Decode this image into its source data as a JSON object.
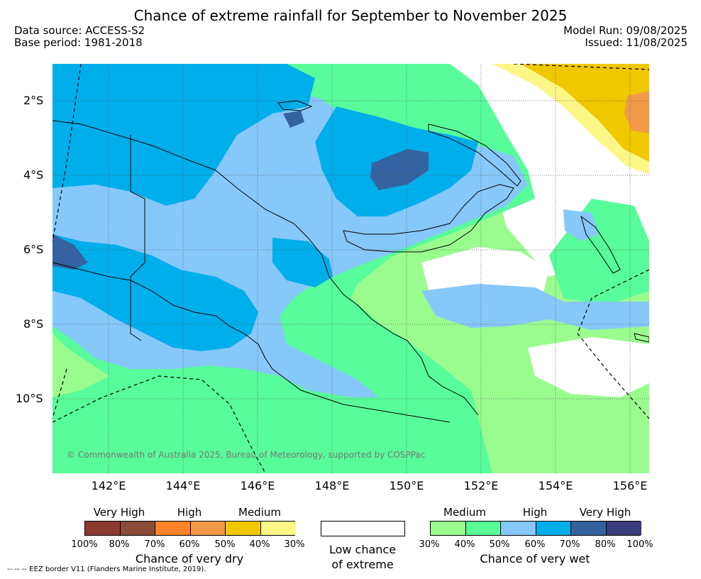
{
  "title": "Chance of extreme rainfall for September to November 2025",
  "header": {
    "data_source": "Data source: ACCESS-S2",
    "base_period": "Base period: 1981-2018",
    "model_run": "Model Run: 09/08/2025",
    "issued": "Issued: 11/08/2025"
  },
  "map": {
    "lat_labels": [
      "2°S",
      "4°S",
      "6°S",
      "8°S",
      "10°S"
    ],
    "lon_labels": [
      "142°E",
      "144°E",
      "146°E",
      "148°E",
      "150°E",
      "152°E",
      "154°E",
      "156°E"
    ],
    "lon_range": [
      140.5,
      156.5
    ],
    "lat_range": [
      -12.0,
      -1.0
    ],
    "copyright": "© Commonwealth of Australia 2025, Bureau of Meteorology, supported by COSPPac",
    "colors": {
      "wet_30": "#9afc8f",
      "wet_40": "#58fc9a",
      "wet_50": "#87c8fa",
      "wet_60": "#00aeea",
      "wet_70": "#3562a0",
      "dry_40": "#fcf787",
      "dry_50": "#f0c800",
      "dry_60": "#f29a4a"
    }
  },
  "legend_dry": {
    "categories": [
      "Very High",
      "High",
      "Medium"
    ],
    "percent_labels": [
      "100%",
      "80%",
      "70%",
      "60%",
      "50%",
      "40%",
      "30%"
    ],
    "colors": [
      "#8b3a30",
      "#8a4c38",
      "#fe8427",
      "#f09a48",
      "#f1c700",
      "#fdf885"
    ],
    "title": "Chance of very dry"
  },
  "legend_low": {
    "line1": "Low chance",
    "line2": "of extreme"
  },
  "legend_wet": {
    "categories": [
      "Medium",
      "High",
      "Very High"
    ],
    "percent_labels": [
      "30%",
      "40%",
      "50%",
      "60%",
      "70%",
      "80%",
      "100%"
    ],
    "colors": [
      "#9afd8e",
      "#58fd99",
      "#86c8f9",
      "#00aeeb",
      "#35619e",
      "#3a3b7a"
    ],
    "title": "Chance of very wet"
  },
  "footer": {
    "eez_note": "--  --  -- EEZ border V11 (Flanders Marine Institute, 2019)."
  }
}
